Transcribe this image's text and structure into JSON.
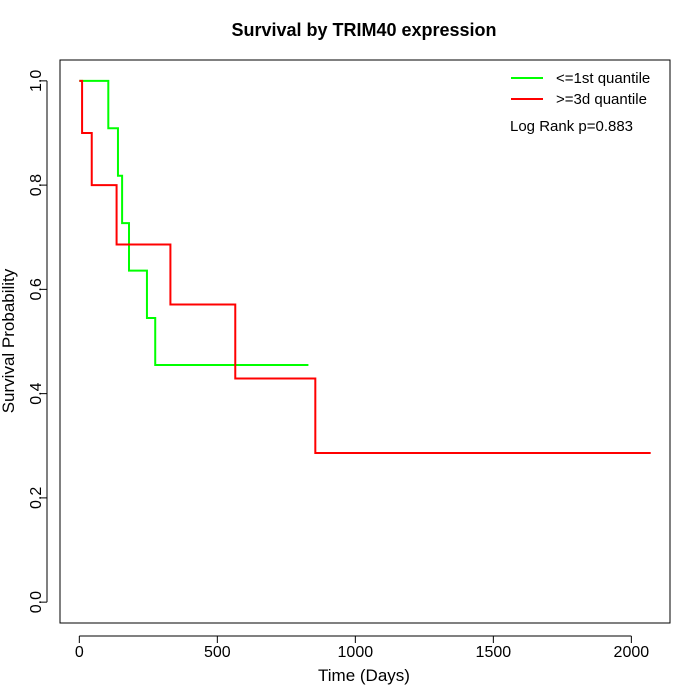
{
  "chart_data": {
    "type": "line",
    "title": "Survival by TRIM40 expression",
    "xlabel": "Time (Days)",
    "ylabel": "Survival Probability",
    "xlim": [
      -70,
      2140
    ],
    "ylim": [
      -0.04,
      1.04
    ],
    "x_ticks": [
      0,
      500,
      1000,
      1500,
      2000
    ],
    "y_ticks": [
      0.0,
      0.2,
      0.4,
      0.6,
      0.8,
      1.0
    ],
    "x_tick_labels": [
      "0",
      "500",
      "1000",
      "1500",
      "2000"
    ],
    "y_tick_labels": [
      "0.0",
      "0.2",
      "0.4",
      "0.6",
      "0.8",
      "1.0"
    ],
    "grid": false,
    "legend_position": "top-right",
    "annotation": "Log Rank p=0.883",
    "series": [
      {
        "name": "<=1st quantile",
        "color": "#00ff00",
        "step": true,
        "x": [
          0,
          105,
          140,
          155,
          180,
          245,
          275,
          830
        ],
        "y": [
          1.0,
          0.909,
          0.818,
          0.727,
          0.636,
          0.545,
          0.455,
          0.455
        ]
      },
      {
        "name": ">=3d quantile",
        "color": "#ff0000",
        "step": true,
        "x": [
          0,
          10,
          45,
          135,
          330,
          565,
          855,
          2070
        ],
        "y": [
          1.0,
          0.9,
          0.8,
          0.686,
          0.571,
          0.429,
          0.286,
          0.286
        ]
      }
    ]
  }
}
